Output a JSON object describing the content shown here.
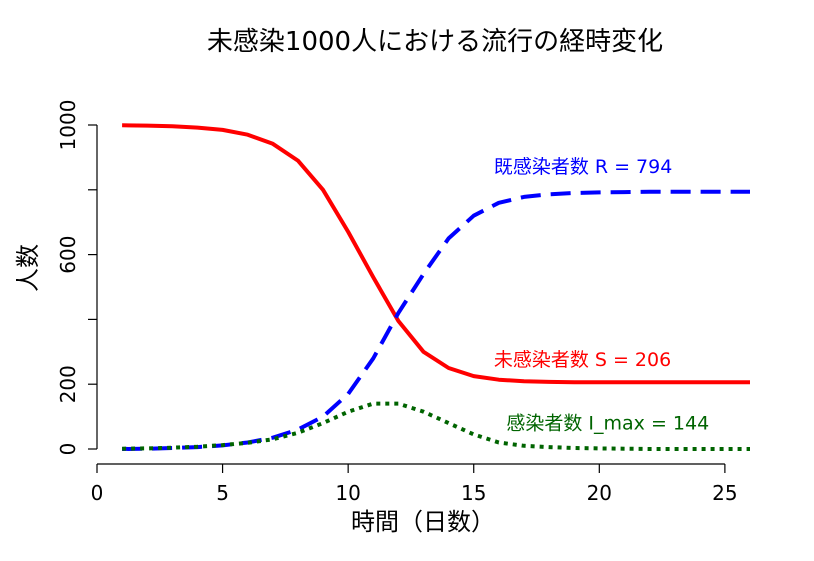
{
  "chart_data": {
    "type": "line",
    "title": "未感染1000人における流行の経時変化",
    "xlabel": "時間（日数）",
    "ylabel": "人数",
    "xlim": [
      0,
      26
    ],
    "ylim": [
      0,
      1000
    ],
    "xticks": [
      0,
      5,
      10,
      15,
      20,
      25
    ],
    "yticks": [
      0,
      200,
      400,
      600,
      800,
      1000
    ],
    "ytick_labels": [
      "0",
      "200",
      "",
      "600",
      "",
      "1000"
    ],
    "grid": false,
    "x": [
      1,
      2,
      3,
      4,
      5,
      6,
      7,
      8,
      9,
      10,
      11,
      12,
      13,
      14,
      15,
      16,
      17,
      18,
      19,
      20,
      21,
      22,
      23,
      24,
      25,
      26
    ],
    "series": [
      {
        "key": "S",
        "color": "#ff0000",
        "dash": "solid",
        "values": [
          999,
          998,
          996,
          992,
          985,
          970,
          942,
          890,
          800,
          670,
          530,
          395,
          300,
          250,
          225,
          214,
          209,
          207,
          206,
          206,
          206,
          206,
          206,
          206,
          206,
          206
        ]
      },
      {
        "key": "R",
        "color": "#0000ff",
        "dash": "dashed",
        "values": [
          0,
          1,
          3,
          6,
          11,
          20,
          35,
          60,
          100,
          170,
          280,
          420,
          540,
          650,
          720,
          760,
          778,
          786,
          790,
          792,
          793,
          794,
          794,
          794,
          794,
          794
        ]
      },
      {
        "key": "I",
        "color": "#006400",
        "dash": "dotted",
        "values": [
          1,
          2,
          4,
          7,
          12,
          19,
          30,
          50,
          80,
          115,
          140,
          140,
          115,
          80,
          45,
          20,
          10,
          6,
          3,
          2,
          1,
          0,
          0,
          0,
          0,
          0
        ]
      }
    ],
    "annotations": [
      {
        "text": "既感染者数 R = 794",
        "color": "#0000ff",
        "x": 15.8,
        "y": 852
      },
      {
        "text": "未感染者数 S = 206",
        "color": "#ff0000",
        "x": 15.8,
        "y": 256
      },
      {
        "text": "感染者数 I_max = 144",
        "color": "#006400",
        "x": 16.3,
        "y": 60
      }
    ]
  }
}
